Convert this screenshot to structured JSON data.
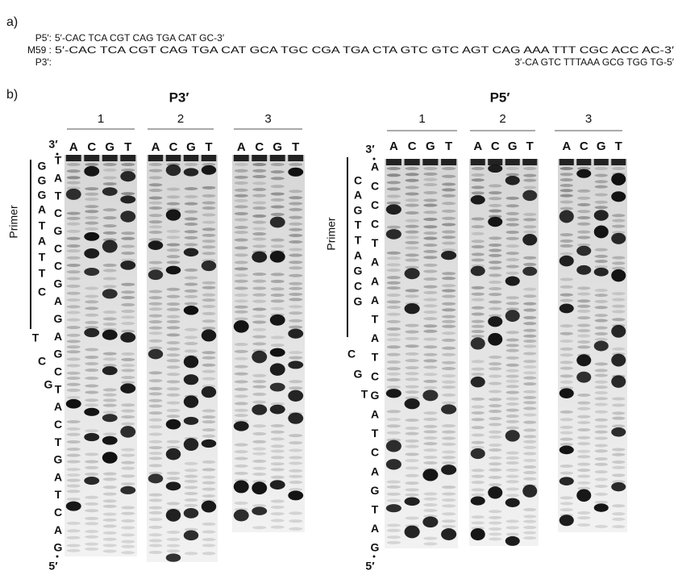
{
  "panel_a": {
    "label": "a)",
    "sequences": [
      {
        "name": "P5′:",
        "sequence": "5′-CAC TCA CGT CAG TGA CAT GC-3′"
      },
      {
        "name": "M59 :",
        "sequence": "5′-CAC TCA CGT CAG TGA CAT GCA TGC CGA TGA CTA GTC GTC AGT CAG AAA TTT CGC ACC AC-3′"
      },
      {
        "name": "P3′:",
        "sequence": "3′-CA GTC TTTAAA GCG TGG TG-5′"
      }
    ]
  },
  "panel_b": {
    "label": "b)",
    "gels": [
      {
        "title": "P3′",
        "primer_label": "Primer",
        "top_end": "3′",
        "bottom_end": "5′",
        "lanes": [
          {
            "number": "1",
            "bases": [
              "A",
              "C",
              "G",
              "T"
            ]
          },
          {
            "number": "2",
            "bases": [
              "A",
              "C",
              "G",
              "T"
            ]
          },
          {
            "number": "3",
            "bases": [
              "A",
              "C",
              "G",
              "T"
            ]
          }
        ],
        "ladder_left": [
          "G",
          "G",
          "G",
          "A",
          "T",
          "A",
          "T",
          "T",
          "C",
          "T",
          "C",
          "G"
        ],
        "ladder_right": [
          "T",
          "A",
          "T",
          "C",
          "G",
          "C",
          "C",
          "G",
          "A",
          "G",
          "A",
          "G",
          "C",
          "T",
          "A",
          "C",
          "T",
          "G",
          "A",
          "T",
          "C",
          "A",
          "G"
        ]
      },
      {
        "title": "P5′",
        "primer_label": "Primer",
        "top_end": "3′",
        "bottom_end": "5′",
        "lanes": [
          {
            "number": "1",
            "bases": [
              "A",
              "C",
              "G",
              "T"
            ]
          },
          {
            "number": "2",
            "bases": [
              "A",
              "C",
              "G",
              "T"
            ]
          },
          {
            "number": "3",
            "bases": [
              "A",
              "C",
              "G",
              "T"
            ]
          }
        ],
        "ladder_left": [
          "C",
          "A",
          "G",
          "T",
          "T",
          "A",
          "G",
          "C",
          "G",
          "C",
          "G",
          "T"
        ],
        "ladder_right": [
          "A",
          "C",
          "C",
          "C",
          "T",
          "A",
          "A",
          "A",
          "T",
          "A",
          "T",
          "C",
          "G",
          "A",
          "T",
          "C",
          "A",
          "G",
          "T",
          "A",
          "G"
        ]
      }
    ]
  }
}
